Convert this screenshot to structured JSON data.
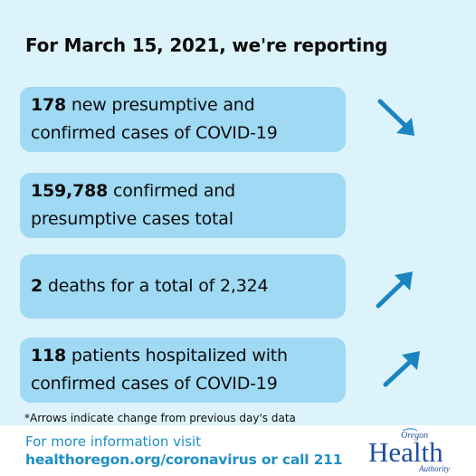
{
  "headline": "For March 15, 2021, we're reporting",
  "stats": [
    {
      "number": "178",
      "line1_rest": " new presumptive and",
      "line2": "confirmed cases of COVID-19",
      "trend": "down"
    },
    {
      "number": "159,788",
      "line1_rest": " confirmed and",
      "line2": "presumptive cases total",
      "trend": "none"
    },
    {
      "number": "2",
      "line1_rest": " deaths for a total of 2,324",
      "line2": "",
      "trend": "up"
    },
    {
      "number": "118",
      "line1_rest": " patients hospitalized with",
      "line2": "confirmed cases of COVID-19",
      "trend": "up"
    }
  ],
  "footnote": "*Arrows indicate change from previous day's data",
  "footer": {
    "line1": "For more information visit",
    "line2": "healthoregon.org/coronavirus or call 211"
  },
  "logo": {
    "text": "Oregon Health Authority"
  },
  "colors": {
    "background": "#ddf3fb",
    "card": "#9fd9f3",
    "arrow": "#1a85bf",
    "footer_text": "#1e8fc4",
    "logo_blue": "#1f4fa0"
  }
}
